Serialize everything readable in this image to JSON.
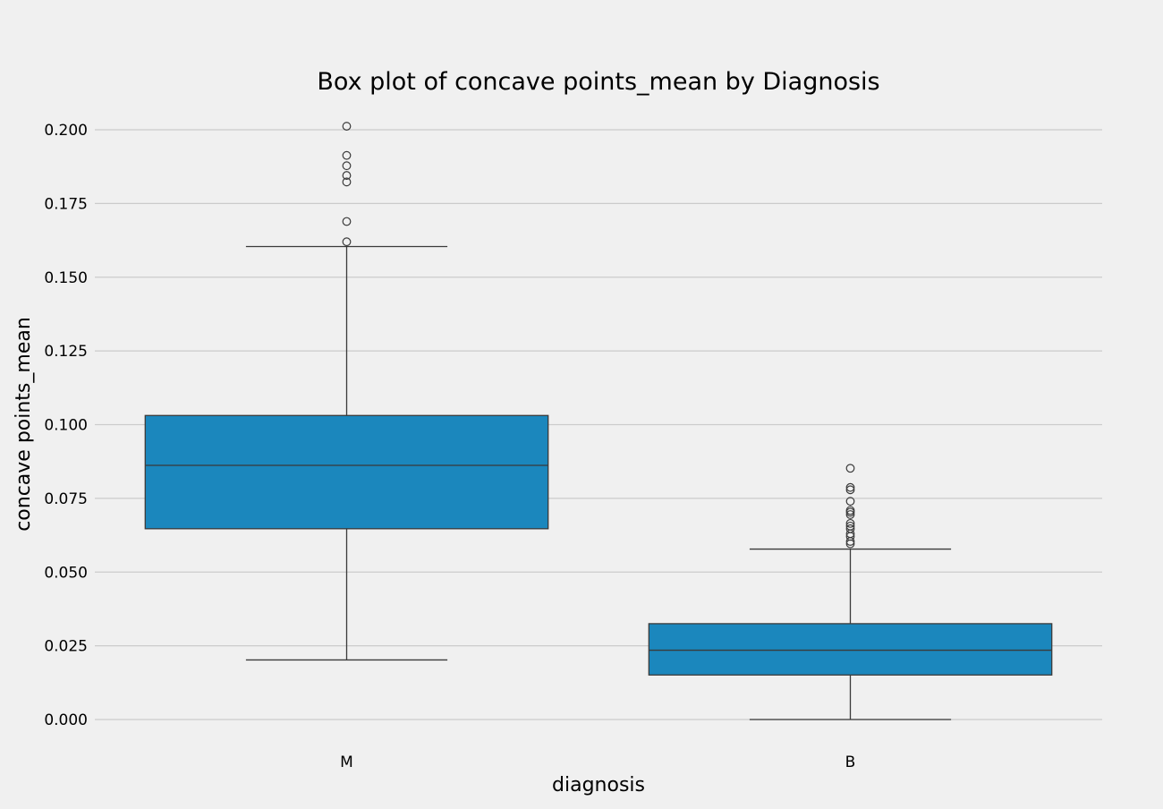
{
  "chart_data": {
    "type": "box",
    "title": "Box plot of concave points_mean by Diagnosis",
    "xlabel": "diagnosis",
    "ylabel": "concave points_mean",
    "ylim": [
      -0.0095,
      0.2065
    ],
    "yticks": [
      0.0,
      0.025,
      0.05,
      0.075,
      0.1,
      0.125,
      0.15,
      0.175,
      0.2
    ],
    "ytick_labels": [
      "0.000",
      "0.025",
      "0.050",
      "0.075",
      "0.100",
      "0.125",
      "0.150",
      "0.175",
      "0.200"
    ],
    "grid": "horizontal",
    "box_color": "#1b87bd",
    "line_color": "#3a3a3a",
    "background_color": "#f0f0f0",
    "grid_color": "#cbcbcb",
    "categories": [
      "M",
      "B"
    ],
    "boxes": [
      {
        "category": "M",
        "whisker_low": 0.0202,
        "q1": 0.0647,
        "median": 0.0862,
        "q3": 0.1031,
        "whisker_high": 0.1604,
        "outliers": [
          0.2012,
          0.1913,
          0.1878,
          0.1845,
          0.1823,
          0.1689,
          0.162
        ]
      },
      {
        "category": "B",
        "whisker_low": 0.0,
        "q1": 0.0151,
        "median": 0.0235,
        "q3": 0.0325,
        "whisker_high": 0.0578,
        "outliers": [
          0.0852,
          0.0787,
          0.0779,
          0.074,
          0.0709,
          0.0703,
          0.0695,
          0.0665,
          0.0656,
          0.0647,
          0.063,
          0.0621,
          0.0604,
          0.0596
        ]
      }
    ]
  }
}
